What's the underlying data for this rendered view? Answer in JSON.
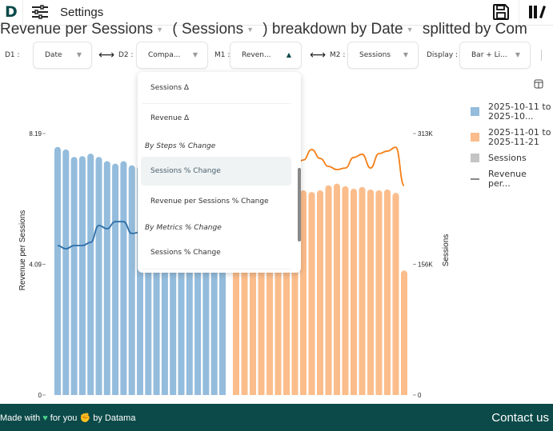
{
  "header": {
    "settings_label": "Settings"
  },
  "title": {
    "metric": "Revenue per Sessions",
    "open_paren": "(",
    "metric2": "Sessions",
    "breakdown": ") breakdown by Date",
    "split": "splitted by Com"
  },
  "controls": {
    "d1": {
      "label": "D1 :",
      "value": "Date"
    },
    "d2": {
      "label": "D2 :",
      "value": "Compa..."
    },
    "m1": {
      "label": "M1 :",
      "value": "Reven..."
    },
    "m2": {
      "label": "M2 :",
      "value": "Sessions"
    },
    "display": {
      "label": "Display :",
      "value": "Bar + Li..."
    }
  },
  "dropdown": {
    "items": [
      {
        "label": "Sessions Δ"
      },
      {
        "label": "Revenue Δ"
      },
      {
        "group": "By Steps % Change"
      },
      {
        "label": "Sessions % Change",
        "highlighted": true
      },
      {
        "label": "Revenue per Sessions % Change"
      },
      {
        "group": "By Metrics % Change"
      },
      {
        "label": "Sessions % Change"
      }
    ]
  },
  "legend": [
    {
      "label": "2025-10-11 to 2025-10...",
      "color": "#94bcdc"
    },
    {
      "label": "2025-11-01 to 2025-11-21",
      "color": "#fbbd8b"
    },
    {
      "label": "Sessions",
      "color": "#c4c4c4"
    },
    {
      "label": "Revenue per...",
      "color": "#888888"
    }
  ],
  "chart_data": {
    "type": "bar+line",
    "ylabel": "Revenue per Sessions",
    "y2label": "Sessions",
    "ylim": [
      0,
      8.19
    ],
    "y2lim": [
      0,
      313
    ],
    "yticks": [
      "0",
      "4.09",
      "8.19"
    ],
    "y2ticks": [
      "0",
      "156K",
      "313K"
    ],
    "series": [
      {
        "name": "2025-10-11 to 2025-10...",
        "kind": "bar",
        "axis": "right",
        "color": "#94bcdc",
        "values": [
          297,
          294,
          285,
          286,
          289,
          285,
          280,
          277,
          280,
          275,
          274,
          270,
          272,
          268,
          266,
          270,
          265,
          262,
          268,
          263,
          260
        ]
      },
      {
        "name": "2025-11-01 to 2025-11-21",
        "kind": "bar",
        "axis": "right",
        "color": "#fbbd8b",
        "values": [
          250,
          252,
          248,
          246,
          244,
          247,
          245,
          243,
          245,
          243,
          245,
          251,
          253,
          250,
          247,
          249,
          246,
          245,
          246,
          242,
          149
        ]
      },
      {
        "name": "2025-10-11 to 2025-10...",
        "kind": "line",
        "axis": "left",
        "color": "#2f6fa8",
        "values": [
          4.68,
          4.58,
          4.68,
          4.68,
          4.78,
          5.31,
          5.21,
          5.43,
          5.43,
          5.06,
          5.1,
          5.2,
          5.15,
          5.25,
          5.3,
          5.2,
          5.35,
          5.4,
          5.3,
          5.25,
          5.2
        ]
      },
      {
        "name": "2025-11-01 to 2025-11-21",
        "kind": "line",
        "axis": "left",
        "color": "#f57f17",
        "values": [
          7.0,
          7.1,
          7.2,
          7.0,
          7.3,
          7.2,
          7.1,
          7.2,
          7.36,
          7.69,
          7.41,
          7.16,
          7.06,
          7.11,
          7.44,
          7.54,
          7.11,
          7.56,
          7.64,
          7.76,
          6.56
        ]
      }
    ]
  },
  "footer": {
    "made_with": "Made with",
    "for_you": "for you",
    "by": "by Datama",
    "contact": "Contact us"
  }
}
